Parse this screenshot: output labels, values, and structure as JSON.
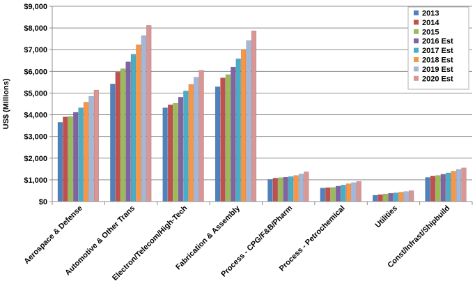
{
  "chart_data": {
    "type": "bar",
    "title": "",
    "xlabel": "",
    "ylabel": "US$ (Millions)",
    "ylim": [
      0,
      9000
    ],
    "yticks": [
      0,
      1000,
      2000,
      3000,
      4000,
      5000,
      6000,
      7000,
      8000,
      9000
    ],
    "ytick_labels": [
      "$0",
      "$1,000",
      "$2,000",
      "$3,000",
      "$4,000",
      "$5,000",
      "$6,000",
      "$7,000",
      "$8,000",
      "$9,000"
    ],
    "grid": true,
    "legend_position": "top-right",
    "categories": [
      "Aerospace & Defense",
      "Automotive & Other Trans",
      "Electron/Telecom/High-Tech",
      "Fabrication & Assembly",
      "Process - CPG/F&B/Pharm",
      "Process - Petrochemical",
      "Utilities",
      "Const/Infrast/Shipbuild"
    ],
    "series": [
      {
        "name": "2013",
        "color": "#4F81BD",
        "values": [
          3650,
          5420,
          4320,
          5290,
          1020,
          620,
          290,
          1110
        ]
      },
      {
        "name": "2014",
        "color": "#C0504D",
        "values": [
          3900,
          5970,
          4460,
          5700,
          1080,
          640,
          320,
          1180
        ]
      },
      {
        "name": "2015",
        "color": "#9BBB59",
        "values": [
          3920,
          6120,
          4530,
          5850,
          1100,
          650,
          350,
          1200
        ]
      },
      {
        "name": "2016 Est",
        "color": "#8064A2",
        "values": [
          4110,
          6440,
          4810,
          6200,
          1120,
          710,
          380,
          1260
        ]
      },
      {
        "name": "2017 Est",
        "color": "#4BACC6",
        "values": [
          4320,
          6790,
          5100,
          6580,
          1150,
          760,
          400,
          1320
        ]
      },
      {
        "name": "2018 Est",
        "color": "#F79646",
        "values": [
          4580,
          7230,
          5400,
          7000,
          1200,
          820,
          430,
          1400
        ]
      },
      {
        "name": "2019 Est",
        "color": "#A5B7D8",
        "values": [
          4850,
          7650,
          5730,
          7420,
          1270,
          870,
          460,
          1480
        ]
      },
      {
        "name": "2020 Est",
        "color": "#D99694",
        "values": [
          5140,
          8120,
          6050,
          7870,
          1370,
          930,
          500,
          1550
        ]
      }
    ]
  }
}
